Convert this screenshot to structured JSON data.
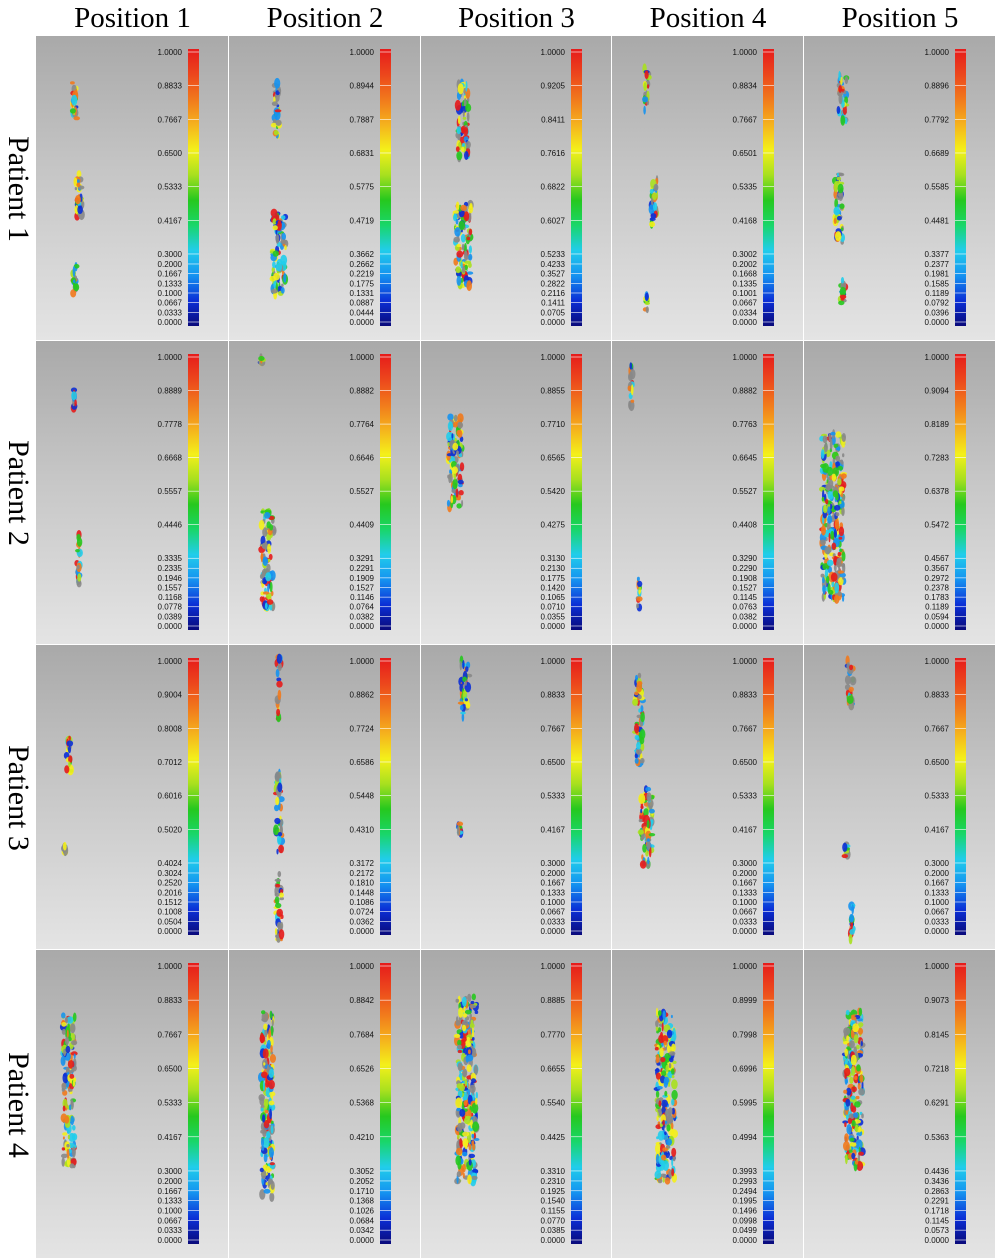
{
  "columns": [
    "Position 1",
    "Position 2",
    "Position 3",
    "Position 4",
    "Position 5"
  ],
  "rows": [
    "Patient 1",
    "Patient 2",
    "Patient 3",
    "Patient 4"
  ],
  "colorscale": [
    "#0a0a7a",
    "#0b2fd6",
    "#1592f0",
    "#21cdeb",
    "#19d66a",
    "#26c81e",
    "#a8e01f",
    "#f4f01a",
    "#f5b21d",
    "#f1791c",
    "#ec461c",
    "#e61b1b"
  ],
  "panels": [
    [
      {
        "ticks": [
          "1.0000",
          "0.8833",
          "0.7667",
          "0.6500",
          "0.5333",
          "0.4167",
          "0.3000",
          "0.2000",
          "0.1667",
          "0.1333",
          "0.1000",
          "0.0667",
          "0.0333",
          "0.0000"
        ]
      },
      {
        "ticks": [
          "1.0000",
          "0.8944",
          "0.7887",
          "0.6831",
          "0.5775",
          "0.4719",
          "0.3662",
          "0.2662",
          "0.2219",
          "0.1775",
          "0.1331",
          "0.0887",
          "0.0444",
          "0.0000"
        ]
      },
      {
        "ticks": [
          "1.0000",
          "0.9205",
          "0.8411",
          "0.7616",
          "0.6822",
          "0.6027",
          "0.5233",
          "0.4233",
          "0.3527",
          "0.2822",
          "0.2116",
          "0.1411",
          "0.0705",
          "0.0000"
        ]
      },
      {
        "ticks": [
          "1.0000",
          "0.8834",
          "0.7667",
          "0.6501",
          "0.5335",
          "0.4168",
          "0.3002",
          "0.2002",
          "0.1668",
          "0.1335",
          "0.1001",
          "0.0667",
          "0.0334",
          "0.0000"
        ]
      },
      {
        "ticks": [
          "1.0000",
          "0.8896",
          "0.7792",
          "0.6689",
          "0.5585",
          "0.4481",
          "0.3377",
          "0.2377",
          "0.1981",
          "0.1585",
          "0.1189",
          "0.0792",
          "0.0396",
          "0.0000"
        ]
      }
    ],
    [
      {
        "ticks": [
          "1.0000",
          "0.8889",
          "0.7778",
          "0.6668",
          "0.5557",
          "0.4446",
          "0.3335",
          "0.2335",
          "0.1946",
          "0.1557",
          "0.1168",
          "0.0778",
          "0.0389",
          "0.0000"
        ]
      },
      {
        "ticks": [
          "1.0000",
          "0.8882",
          "0.7764",
          "0.6646",
          "0.5527",
          "0.4409",
          "0.3291",
          "0.2291",
          "0.1909",
          "0.1527",
          "0.1146",
          "0.0764",
          "0.0382",
          "0.0000"
        ]
      },
      {
        "ticks": [
          "1.0000",
          "0.8855",
          "0.7710",
          "0.6565",
          "0.5420",
          "0.4275",
          "0.3130",
          "0.2130",
          "0.1775",
          "0.1420",
          "0.1065",
          "0.0710",
          "0.0355",
          "0.0000"
        ]
      },
      {
        "ticks": [
          "1.0000",
          "0.8882",
          "0.7763",
          "0.6645",
          "0.5527",
          "0.4408",
          "0.3290",
          "0.2290",
          "0.1908",
          "0.1527",
          "0.1145",
          "0.0763",
          "0.0382",
          "0.0000"
        ]
      },
      {
        "ticks": [
          "1.0000",
          "0.9094",
          "0.8189",
          "0.7283",
          "0.6378",
          "0.5472",
          "0.4567",
          "0.3567",
          "0.2972",
          "0.2378",
          "0.1783",
          "0.1189",
          "0.0594",
          "0.0000"
        ]
      }
    ],
    [
      {
        "ticks": [
          "1.0000",
          "0.9004",
          "0.8008",
          "0.7012",
          "0.6016",
          "0.5020",
          "0.4024",
          "0.3024",
          "0.2520",
          "0.2016",
          "0.1512",
          "0.1008",
          "0.0504",
          "0.0000"
        ]
      },
      {
        "ticks": [
          "1.0000",
          "0.8862",
          "0.7724",
          "0.6586",
          "0.5448",
          "0.4310",
          "0.3172",
          "0.2172",
          "0.1810",
          "0.1448",
          "0.1086",
          "0.0724",
          "0.0362",
          "0.0000"
        ]
      },
      {
        "ticks": [
          "1.0000",
          "0.8833",
          "0.7667",
          "0.6500",
          "0.5333",
          "0.4167",
          "0.3000",
          "0.2000",
          "0.1667",
          "0.1333",
          "0.1000",
          "0.0667",
          "0.0333",
          "0.0000"
        ]
      },
      {
        "ticks": [
          "1.0000",
          "0.8833",
          "0.7667",
          "0.6500",
          "0.5333",
          "0.4167",
          "0.3000",
          "0.2000",
          "0.1667",
          "0.1333",
          "0.1000",
          "0.0667",
          "0.0333",
          "0.0000"
        ]
      },
      {
        "ticks": [
          "1.0000",
          "0.8833",
          "0.7667",
          "0.6500",
          "0.5333",
          "0.4167",
          "0.3000",
          "0.2000",
          "0.1667",
          "0.1333",
          "0.1000",
          "0.0667",
          "0.0333",
          "0.0000"
        ]
      }
    ],
    [
      {
        "ticks": [
          "1.0000",
          "0.8833",
          "0.7667",
          "0.6500",
          "0.5333",
          "0.4167",
          "0.3000",
          "0.2000",
          "0.1667",
          "0.1333",
          "0.1000",
          "0.0667",
          "0.0333",
          "0.0000"
        ]
      },
      {
        "ticks": [
          "1.0000",
          "0.8842",
          "0.7684",
          "0.6526",
          "0.5368",
          "0.4210",
          "0.3052",
          "0.2052",
          "0.1710",
          "0.1368",
          "0.1026",
          "0.0684",
          "0.0342",
          "0.0000"
        ]
      },
      {
        "ticks": [
          "1.0000",
          "0.8885",
          "0.7770",
          "0.6655",
          "0.5540",
          "0.4425",
          "0.3310",
          "0.2310",
          "0.1925",
          "0.1540",
          "0.1155",
          "0.0770",
          "0.0385",
          "0.0000"
        ]
      },
      {
        "ticks": [
          "1.0000",
          "0.8999",
          "0.7998",
          "0.6996",
          "0.5995",
          "0.4994",
          "0.3993",
          "0.2993",
          "0.2494",
          "0.1995",
          "0.1496",
          "0.0998",
          "0.0499",
          "0.0000"
        ]
      },
      {
        "ticks": [
          "1.0000",
          "0.9073",
          "0.8145",
          "0.7218",
          "0.6291",
          "0.5363",
          "0.4436",
          "0.3436",
          "0.2863",
          "0.2291",
          "0.1718",
          "0.1145",
          "0.0573",
          "0.0000"
        ]
      }
    ]
  ]
}
